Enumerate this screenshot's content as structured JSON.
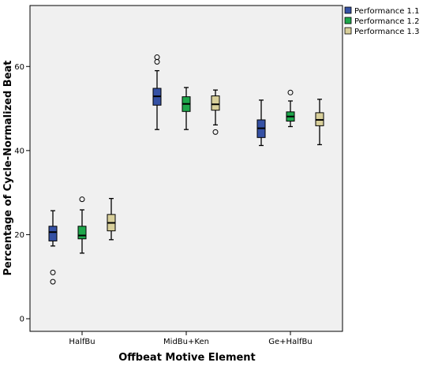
{
  "chart_data": {
    "type": "boxplot",
    "xlabel": "Offbeat Motive Element",
    "ylabel": "Percentage of Cycle-Normalized Beat",
    "categories": [
      "HalfBu",
      "MidBu+Ken",
      "Ge+HalfBu"
    ],
    "y_ticks": [
      0,
      20,
      40,
      60
    ],
    "y_tick_labels": [
      "0",
      "20",
      "40",
      "60"
    ],
    "ylim": [
      -3,
      74.5
    ],
    "grid": false,
    "legend_position": "top-right",
    "series": [
      {
        "name": "Performance 1.1",
        "color": "#3551a4",
        "boxes": [
          {
            "category": "HalfBu",
            "min": 17.3,
            "q1": 18.5,
            "median": 20.6,
            "q3": 22.0,
            "max": 25.7,
            "outliers": [
              11.0,
              8.8
            ]
          },
          {
            "category": "MidBu+Ken",
            "min": 45.0,
            "q1": 50.8,
            "median": 52.9,
            "q3": 54.8,
            "max": 59.0,
            "outliers": [
              61.1,
              62.2
            ]
          },
          {
            "category": "Ge+HalfBu",
            "min": 41.2,
            "q1": 43.1,
            "median": 45.3,
            "q3": 47.3,
            "max": 52.0,
            "outliers": []
          }
        ]
      },
      {
        "name": "Performance 1.2",
        "color": "#1ea74b",
        "boxes": [
          {
            "category": "HalfBu",
            "min": 15.6,
            "q1": 19.0,
            "median": 19.8,
            "q3": 22.0,
            "max": 25.9,
            "outliers": [
              28.4
            ]
          },
          {
            "category": "MidBu+Ken",
            "min": 45.0,
            "q1": 49.3,
            "median": 51.1,
            "q3": 52.8,
            "max": 55.0,
            "outliers": []
          },
          {
            "category": "Ge+HalfBu",
            "min": 45.7,
            "q1": 47.0,
            "median": 48.1,
            "q3": 49.2,
            "max": 51.8,
            "outliers": [
              53.8
            ]
          }
        ]
      },
      {
        "name": "Performance 1.3",
        "color": "#d8cf9a",
        "boxes": [
          {
            "category": "HalfBu",
            "min": 18.8,
            "q1": 20.9,
            "median": 22.8,
            "q3": 24.8,
            "max": 28.6,
            "outliers": []
          },
          {
            "category": "MidBu+Ken",
            "min": 46.1,
            "q1": 49.6,
            "median": 51.0,
            "q3": 53.0,
            "max": 54.4,
            "outliers": [
              44.4
            ]
          },
          {
            "category": "Ge+HalfBu",
            "min": 41.4,
            "q1": 45.9,
            "median": 47.3,
            "q3": 49.0,
            "max": 52.2,
            "outliers": []
          }
        ]
      }
    ]
  }
}
